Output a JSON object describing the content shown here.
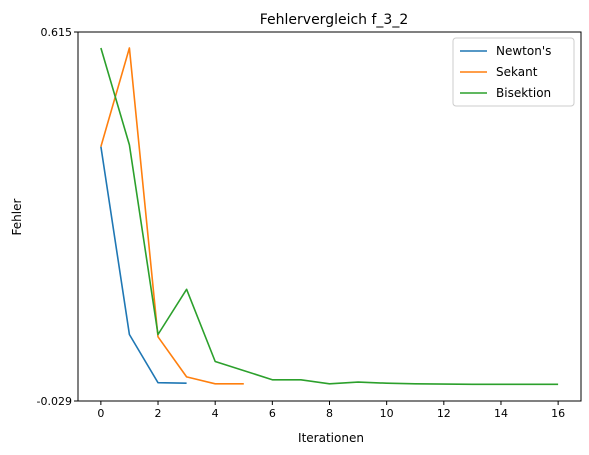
{
  "chart_data": {
    "type": "line",
    "title": "Fehlervergleich f_3_2",
    "xlabel": "Iterationen",
    "ylabel": "Fehler",
    "xlim": [
      -0.8,
      16.8
    ],
    "ylim": [
      -0.029,
      0.615
    ],
    "xticks": [
      0,
      2,
      4,
      6,
      8,
      10,
      12,
      14,
      16
    ],
    "yticks": [
      -0.029,
      0.615
    ],
    "ytick_labels": [
      "-0.029",
      "0.615"
    ],
    "grid": false,
    "legend_position": "top-right",
    "series": [
      {
        "name": "Newton's",
        "color": "#1f77b4",
        "x": [
          0,
          1,
          2,
          3
        ],
        "y": [
          0.415,
          0.087,
          0.003,
          0.002
        ]
      },
      {
        "name": "Sekant",
        "color": "#ff7f0e",
        "x": [
          0,
          1,
          2,
          3,
          4,
          5
        ],
        "y": [
          0.415,
          0.587,
          0.083,
          0.013,
          0.001,
          0.001
        ]
      },
      {
        "name": "Bisektion",
        "color": "#2ca02c",
        "x": [
          0,
          1,
          2,
          3,
          4,
          5,
          6,
          7,
          8,
          9,
          10,
          11,
          12,
          13,
          14,
          15,
          16
        ],
        "y": [
          0.587,
          0.418,
          0.087,
          0.166,
          0.04,
          0.024,
          0.008,
          0.008,
          0.001,
          0.004,
          0.002,
          0.001,
          0.0005,
          0.0002,
          0.0001,
          0.0001,
          0.0001
        ]
      }
    ]
  }
}
